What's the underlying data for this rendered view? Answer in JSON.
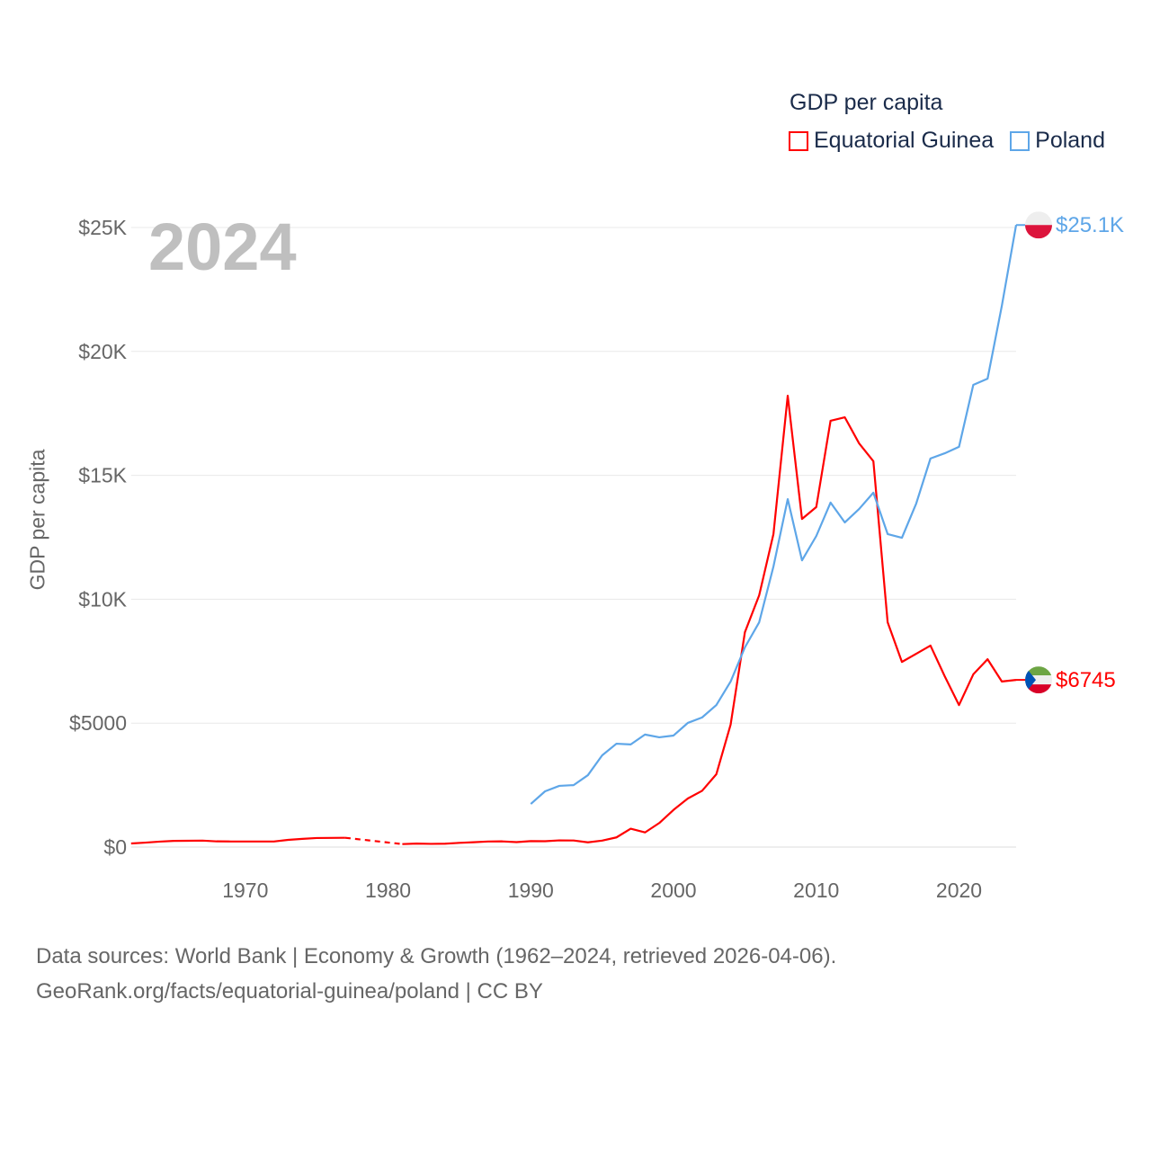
{
  "legend": {
    "title": "GDP per capita",
    "items": [
      {
        "name": "Equatorial Guinea",
        "color": "#ff0000"
      },
      {
        "name": "Poland",
        "color": "#5ea6e8"
      }
    ]
  },
  "year_label": "2024",
  "footer": {
    "line1": "Data sources: World Bank | Economy & Growth (1962–2024, retrieved 2026-04-06).",
    "line2": "GeoRank.org/facts/equatorial-guinea/poland | CC BY"
  },
  "chart_data": {
    "type": "line",
    "title": "GDP per capita",
    "ylabel": "GDP per capita",
    "xlabel": "",
    "xlim": [
      1962,
      2024
    ],
    "ylim": [
      0,
      25000
    ],
    "x_ticks": [
      1970,
      1980,
      1990,
      2000,
      2010,
      2020
    ],
    "y_ticks": [
      {
        "value": 0,
        "label": "$0"
      },
      {
        "value": 5000,
        "label": "$5000"
      },
      {
        "value": 10000,
        "label": "$10K"
      },
      {
        "value": 15000,
        "label": "$15K"
      },
      {
        "value": 20000,
        "label": "$20K"
      },
      {
        "value": 25000,
        "label": "$25K"
      }
    ],
    "grid": true,
    "legend_position": "top-right",
    "series": [
      {
        "name": "Equatorial Guinea",
        "color": "#ff0000",
        "end_label": "$6745",
        "start_year": 1962,
        "values": [
          145,
          180,
          220,
          250,
          255,
          260,
          230,
          225,
          225,
          225,
          225,
          290,
          330,
          365,
          370,
          375,
          null,
          null,
          null,
          120,
          140,
          130,
          135,
          170,
          195,
          225,
          230,
          200,
          240,
          235,
          270,
          265,
          190,
          260,
          390,
          740,
          590,
          970,
          1500,
          1960,
          2270,
          2940,
          4940,
          8670,
          10160,
          12630,
          18210,
          13240,
          13720,
          17200,
          17340,
          16290,
          15570,
          9070,
          7470,
          7800,
          8130,
          6890,
          5730,
          6970,
          7580,
          6680,
          6745
        ]
      },
      {
        "name": "Poland",
        "color": "#5ea6e8",
        "end_label": "$25.1K",
        "start_year": 1990,
        "values": [
          1740,
          2250,
          2470,
          2500,
          2900,
          3700,
          4170,
          4140,
          4540,
          4430,
          4500,
          5010,
          5230,
          5730,
          6680,
          8060,
          9070,
          11320,
          14040,
          11570,
          12550,
          13900,
          13100,
          13640,
          14300,
          12630,
          12480,
          13860,
          15680,
          15890,
          16150,
          18650,
          18900,
          21840,
          25100
        ]
      }
    ]
  }
}
